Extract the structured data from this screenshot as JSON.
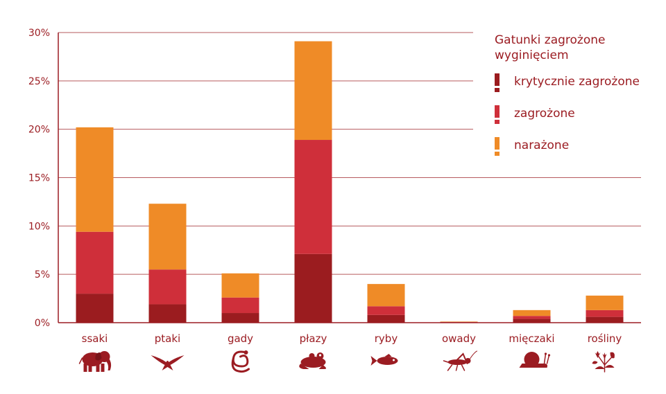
{
  "chart_data": {
    "type": "bar",
    "stacked": true,
    "title": "",
    "xlabel": "",
    "ylabel": "",
    "ylim": [
      0,
      30
    ],
    "y_ticks": [
      0,
      5,
      10,
      15,
      20,
      25,
      30
    ],
    "y_tick_labels": [
      "0%",
      "5%",
      "10%",
      "15%",
      "20%",
      "25%",
      "30%"
    ],
    "grid": true,
    "categories": [
      "ssaki",
      "ptaki",
      "gady",
      "płazy",
      "ryby",
      "owady",
      "mięczaki",
      "rośliny"
    ],
    "category_icons": [
      "elephant-icon",
      "bird-icon",
      "snake-icon",
      "frog-icon",
      "fish-icon",
      "grasshopper-icon",
      "snail-icon",
      "plant-icon"
    ],
    "series": [
      {
        "name": "krytycznie zagrożone",
        "color": "#9b1c1f",
        "values": [
          3.0,
          1.9,
          1.0,
          7.1,
          0.8,
          0.05,
          0.4,
          0.6
        ]
      },
      {
        "name": "zagrożone",
        "color": "#cf2f3a",
        "values": [
          6.4,
          3.6,
          1.6,
          11.8,
          0.9,
          0.03,
          0.3,
          0.7
        ]
      },
      {
        "name": "narażone",
        "color": "#ef8b27",
        "values": [
          10.8,
          6.8,
          2.5,
          10.2,
          2.3,
          0.04,
          0.6,
          1.5
        ]
      }
    ],
    "legend": {
      "title_lines": [
        "Gatunki zagrożone",
        "wyginięciem"
      ],
      "placement": "top-right"
    }
  }
}
